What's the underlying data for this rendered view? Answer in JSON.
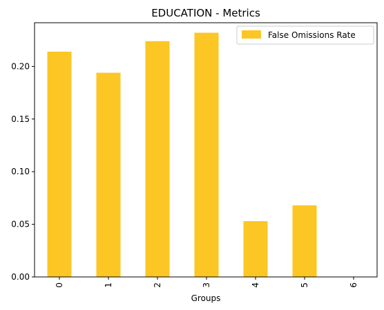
{
  "chart_data": {
    "type": "bar",
    "title": "EDUCATION - Metrics",
    "xlabel": "Groups",
    "ylabel": "",
    "categories": [
      "0",
      "1",
      "2",
      "3",
      "4",
      "5",
      "6"
    ],
    "series": [
      {
        "name": "False Omissions Rate",
        "values": [
          0.214,
          0.194,
          0.224,
          0.232,
          0.053,
          0.068,
          0.0
        ],
        "color": "#fcc624"
      }
    ],
    "ylim": [
      0,
      0.2415
    ],
    "yticks": [
      0.0,
      0.05,
      0.1,
      0.15,
      0.2
    ],
    "ytick_labels": [
      "0.00",
      "0.05",
      "0.10",
      "0.15",
      "0.20"
    ],
    "legend_position": "top-right",
    "grid": false
  }
}
